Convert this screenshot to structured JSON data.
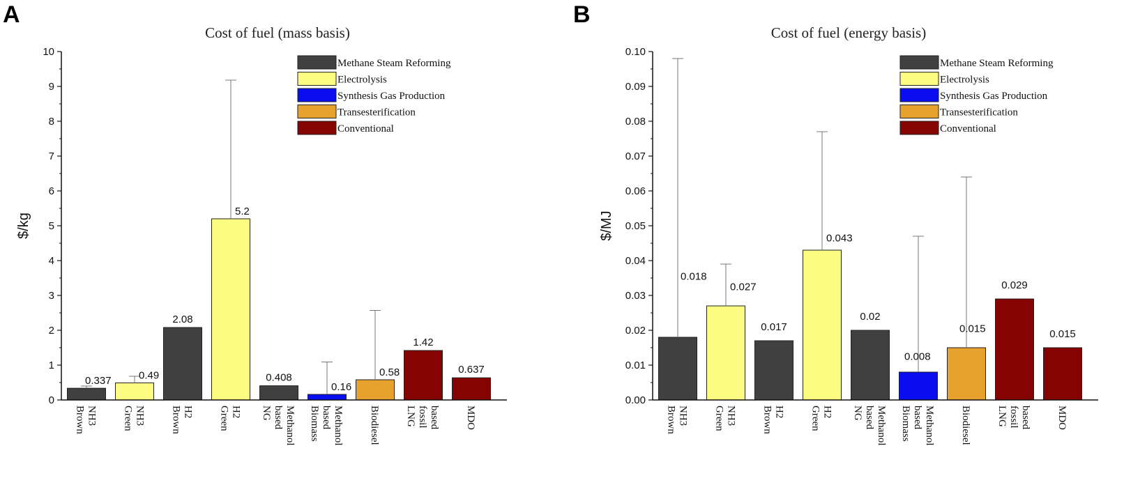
{
  "colors": {
    "Methane Steam Reforming": "#404040",
    "Electrolysis": "#fdfc82",
    "Synthesis Gas Production": "#0a0df0",
    "Transesterification": "#e6a22c",
    "Conventional": "#850303"
  },
  "chart_data": [
    {
      "panel": "A",
      "type": "bar",
      "title": "Cost of fuel (mass basis)",
      "ylabel": "$/kg",
      "xlabel": "",
      "ylim": [
        0,
        10
      ],
      "yticks": [
        "0",
        "1",
        "2",
        "3",
        "4",
        "5",
        "6",
        "7",
        "8",
        "9",
        "10"
      ],
      "legend": [
        "Methane Steam Reforming",
        "Electrolysis",
        "Synthesis Gas Production",
        "Transesterification",
        "Conventional"
      ],
      "legend_position": "top-right",
      "categories": [
        {
          "lines": [
            "Brown",
            "NH3"
          ],
          "value": 0.337,
          "label": "0.337",
          "err_top": 0.4,
          "group": "Methane Steam Reforming"
        },
        {
          "lines": [
            "Green",
            "NH3"
          ],
          "value": 0.49,
          "label": "0.49",
          "err_top": 0.68,
          "group": "Electrolysis"
        },
        {
          "lines": [
            "Brown",
            "H2"
          ],
          "value": 2.08,
          "label": "2.08",
          "err_top": null,
          "group": "Methane Steam Reforming"
        },
        {
          "lines": [
            "Green",
            "H2"
          ],
          "value": 5.2,
          "label": "5.2",
          "err_top": 9.18,
          "group": "Electrolysis"
        },
        {
          "lines": [
            "NG",
            "based",
            "Methanol"
          ],
          "value": 0.408,
          "label": "0.408",
          "err_top": null,
          "group": "Methane Steam Reforming"
        },
        {
          "lines": [
            "Biomass",
            "based",
            "Methanol"
          ],
          "value": 0.16,
          "label": "0.16",
          "err_top": 1.09,
          "group": "Synthesis Gas Production"
        },
        {
          "lines": [
            "Biodiesel"
          ],
          "value": 0.58,
          "label": "0.58",
          "err_top": 2.57,
          "group": "Transesterification"
        },
        {
          "lines": [
            "LNG",
            "fossil",
            "based"
          ],
          "value": 1.42,
          "label": "1.42",
          "err_top": null,
          "group": "Conventional"
        },
        {
          "lines": [
            "MDO"
          ],
          "value": 0.637,
          "label": "0.637",
          "err_top": null,
          "group": "Conventional"
        }
      ]
    },
    {
      "panel": "B",
      "type": "bar",
      "title": "Cost of fuel (energy basis)",
      "ylabel": "$/MJ",
      "xlabel": "",
      "ylim": [
        0,
        0.1
      ],
      "yticks": [
        "0.00",
        "0.01",
        "0.02",
        "0.03",
        "0.04",
        "0.05",
        "0.06",
        "0.07",
        "0.08",
        "0.09",
        "0.10"
      ],
      "legend": [
        "Methane Steam Reforming",
        "Electrolysis",
        "Synthesis Gas Production",
        "Transesterification",
        "Conventional"
      ],
      "legend_position": "top-right",
      "categories": [
        {
          "lines": [
            "Brown",
            "NH3"
          ],
          "value": 0.018,
          "label": "0.018",
          "err_top": 0.098,
          "group": "Methane Steam Reforming"
        },
        {
          "lines": [
            "Green",
            "NH3"
          ],
          "value": 0.027,
          "label": "0.027",
          "err_top": 0.039,
          "group": "Electrolysis"
        },
        {
          "lines": [
            "Brown",
            "H2"
          ],
          "value": 0.017,
          "label": "0.017",
          "err_top": null,
          "group": "Methane Steam Reforming"
        },
        {
          "lines": [
            "Green",
            "H2"
          ],
          "value": 0.043,
          "label": "0.043",
          "err_top": 0.077,
          "group": "Electrolysis"
        },
        {
          "lines": [
            "NG",
            "based",
            "Methanol"
          ],
          "value": 0.02,
          "label": "0.02",
          "err_top": null,
          "group": "Methane Steam Reforming"
        },
        {
          "lines": [
            "Biomass",
            "based",
            "Methanol"
          ],
          "value": 0.008,
          "label": "0.008",
          "err_top": 0.047,
          "group": "Synthesis Gas Production"
        },
        {
          "lines": [
            "Biodiesel"
          ],
          "value": 0.015,
          "label": "0.015",
          "err_top": 0.064,
          "group": "Transesterification"
        },
        {
          "lines": [
            "LNG",
            "fossil",
            "based"
          ],
          "value": 0.029,
          "label": "0.029",
          "err_top": null,
          "group": "Conventional"
        },
        {
          "lines": [
            "MDO"
          ],
          "value": 0.015,
          "label": "0.015",
          "err_top": null,
          "group": "Conventional"
        }
      ]
    }
  ]
}
